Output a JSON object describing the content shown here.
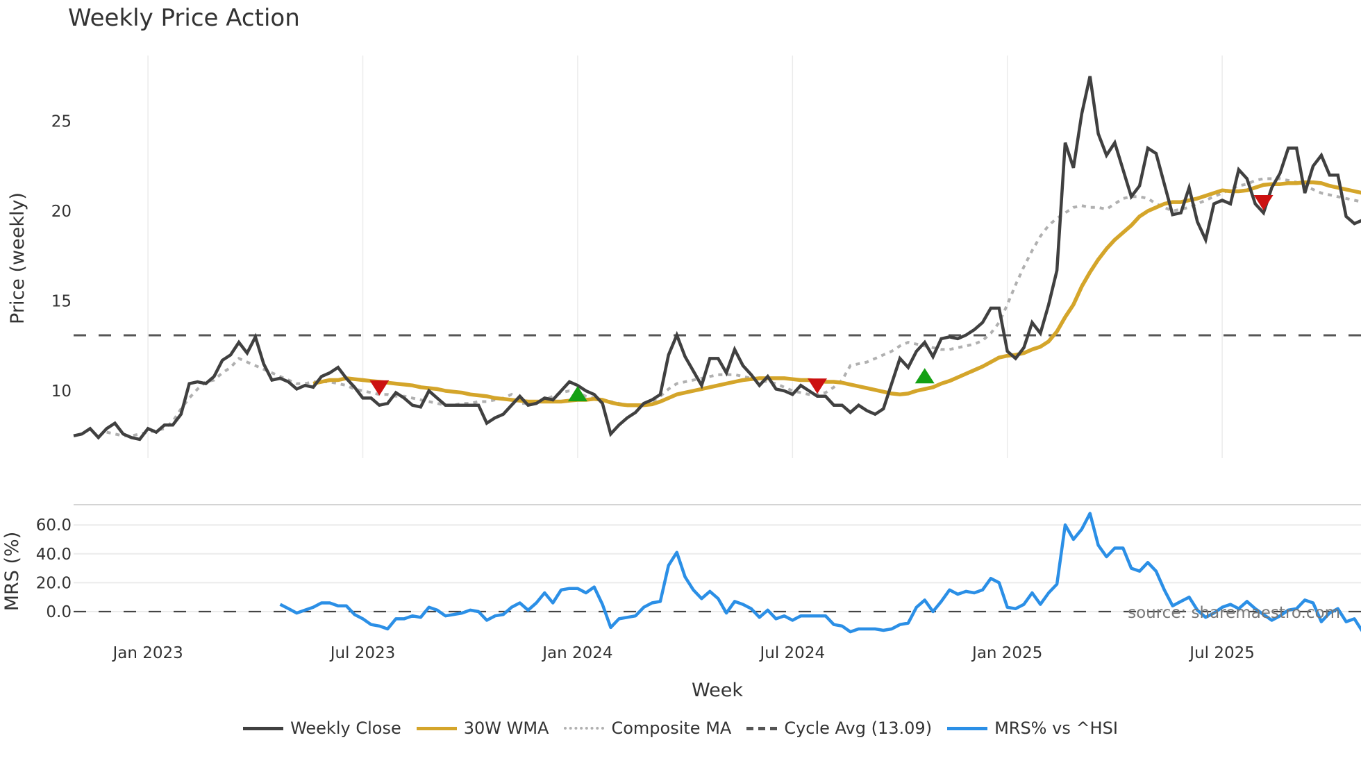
{
  "title": "Weekly Price Action",
  "price_panel": {
    "ylabel": "Price (weekly)",
    "yticks": [
      {
        "value": 25,
        "label": "25"
      },
      {
        "value": 20,
        "label": "20"
      },
      {
        "value": 15,
        "label": "15"
      },
      {
        "value": 10,
        "label": "10"
      }
    ]
  },
  "mrs_panel": {
    "ylabel": "MRS (%)",
    "yticks": [
      {
        "value": 60,
        "label": "60.0"
      },
      {
        "value": 40,
        "label": "40.0"
      },
      {
        "value": 20,
        "label": "20.0"
      },
      {
        "value": 0,
        "label": "0.0"
      }
    ],
    "source_text": "source: sharemaestro.com"
  },
  "xaxis": {
    "label": "Week",
    "ticks": [
      {
        "index": 9,
        "label": "Jan 2023"
      },
      {
        "index": 35,
        "label": "Jul 2023"
      },
      {
        "index": 61,
        "label": "Jan 2024"
      },
      {
        "index": 87,
        "label": "Jul 2024"
      },
      {
        "index": 113,
        "label": "Jan 2025"
      },
      {
        "index": 139,
        "label": "Jul 2025"
      }
    ]
  },
  "legend": [
    {
      "label": "Weekly Close",
      "color": "#404040",
      "style": "solid"
    },
    {
      "label": "30W WMA",
      "color": "#d4a52a",
      "style": "solid"
    },
    {
      "label": "Composite MA",
      "color": "#b0b0b0",
      "style": "dotted"
    },
    {
      "label": "Cycle Avg (13.09)",
      "color": "#555555",
      "style": "dashed"
    },
    {
      "label": "MRS% vs ^HSI",
      "color": "#2b8fe6",
      "style": "solid"
    }
  ],
  "colors": {
    "weekly_close": "#404040",
    "wma": "#d4a52a",
    "composite": "#b0b0b0",
    "cycle_avg": "#555555",
    "mrs": "#2b8fe6",
    "buy_marker": "#14a014",
    "sell_marker": "#cc1111",
    "grid": "#ebebeb"
  },
  "chart_data": [
    {
      "type": "line",
      "title": "Weekly Price Action",
      "xlabel": "Week",
      "ylabel": "Price (weekly)",
      "ylim": [
        6.3,
        28.5
      ],
      "grid": true,
      "legend_position": "bottom",
      "x_ticks": [
        "Jan 2023",
        "Jul 2023",
        "Jan 2024",
        "Jul 2024",
        "Jan 2025",
        "Jul 2025"
      ],
      "series": [
        {
          "name": "Weekly Close",
          "start_index": 0,
          "values": [
            7.5,
            7.6,
            7.9,
            7.4,
            7.9,
            8.2,
            7.6,
            7.4,
            7.3,
            7.9,
            7.7,
            8.1,
            8.1,
            8.7,
            10.4,
            10.5,
            10.4,
            10.8,
            11.7,
            12.0,
            12.7,
            12.1,
            13.0,
            11.5,
            10.6,
            10.7,
            10.5,
            10.1,
            10.3,
            10.2,
            10.8,
            11.0,
            11.3,
            10.7,
            10.2,
            9.6,
            9.6,
            9.2,
            9.3,
            9.9,
            9.6,
            9.2,
            9.1,
            10.0,
            9.6,
            9.2,
            9.2,
            9.2,
            9.2,
            9.2,
            8.2,
            8.5,
            8.7,
            9.2,
            9.7,
            9.2,
            9.3,
            9.6,
            9.5,
            10.0,
            10.5,
            10.3,
            10.0,
            9.8,
            9.3,
            7.6,
            8.1,
            8.5,
            8.8,
            9.3,
            9.5,
            9.8,
            12.0,
            13.1,
            11.9,
            11.1,
            10.3,
            11.8,
            11.8,
            11.0,
            12.3,
            11.4,
            10.9,
            10.3,
            10.8,
            10.1,
            10.0,
            9.8,
            10.3,
            10.0,
            9.7,
            9.7,
            9.2,
            9.2,
            8.8,
            9.2,
            8.9,
            8.7,
            9.0,
            10.4,
            11.8,
            11.3,
            12.2,
            12.7,
            11.9,
            12.9,
            13.0,
            12.9,
            13.1,
            13.4,
            13.8,
            14.6,
            14.6,
            12.2,
            11.8,
            12.4,
            13.8,
            13.2,
            14.8,
            16.7,
            23.8,
            22.4,
            25.4,
            27.5,
            24.3,
            23.1,
            23.8,
            22.3,
            20.8,
            21.4,
            23.5,
            23.2,
            21.5,
            19.8,
            19.9,
            21.3,
            19.4,
            18.4,
            20.4,
            20.6,
            20.4,
            22.3,
            21.8,
            20.4,
            19.9,
            21.3,
            22.1,
            23.5,
            23.5,
            21.0,
            22.5,
            23.1,
            22.0,
            22.0,
            19.7,
            19.3,
            19.5
          ]
        },
        {
          "name": "30W WMA",
          "start_index": 29,
          "values": [
            10.4,
            10.5,
            10.6,
            10.6,
            10.7,
            10.65,
            10.6,
            10.55,
            10.5,
            10.45,
            10.4,
            10.35,
            10.3,
            10.2,
            10.15,
            10.1,
            10.0,
            9.95,
            9.9,
            9.8,
            9.75,
            9.7,
            9.6,
            9.55,
            9.5,
            9.45,
            9.4,
            9.4,
            9.4,
            9.4,
            9.4,
            9.45,
            9.5,
            9.5,
            9.55,
            9.5,
            9.35,
            9.25,
            9.2,
            9.2,
            9.2,
            9.25,
            9.4,
            9.6,
            9.8,
            9.9,
            10.0,
            10.1,
            10.2,
            10.3,
            10.4,
            10.5,
            10.6,
            10.65,
            10.7,
            10.7,
            10.7,
            10.7,
            10.65,
            10.6,
            10.6,
            10.55,
            10.5,
            10.5,
            10.45,
            10.35,
            10.25,
            10.15,
            10.05,
            9.95,
            9.85,
            9.8,
            9.85,
            10.0,
            10.1,
            10.2,
            10.4,
            10.55,
            10.75,
            10.95,
            11.15,
            11.35,
            11.6,
            11.85,
            11.95,
            12.0,
            12.1,
            12.3,
            12.45,
            12.75,
            13.3,
            14.1,
            14.8,
            15.8,
            16.6,
            17.3,
            17.9,
            18.4,
            18.8,
            19.2,
            19.7,
            20.0,
            20.2,
            20.4,
            20.5,
            20.5,
            20.6,
            20.7,
            20.85,
            21.0,
            21.15,
            21.1,
            21.1,
            21.15,
            21.3,
            21.45,
            21.5,
            21.5,
            21.55,
            21.55,
            21.6,
            21.6,
            21.55,
            21.4,
            21.3,
            21.2,
            21.1,
            21.0
          ]
        },
        {
          "name": "Composite MA",
          "start_index": 4,
          "values": [
            7.7,
            7.6,
            7.5,
            7.5,
            7.6,
            7.7,
            7.8,
            7.9,
            8.3,
            9.0,
            9.6,
            10.1,
            10.5,
            10.6,
            11.0,
            11.3,
            11.8,
            11.6,
            11.4,
            11.2,
            11.0,
            10.8,
            10.6,
            10.4,
            10.4,
            10.5,
            10.5,
            10.5,
            10.4,
            10.3,
            10.1,
            10.0,
            9.9,
            9.8,
            9.8,
            9.7,
            9.7,
            9.6,
            9.5,
            9.4,
            9.3,
            9.2,
            9.2,
            9.3,
            9.3,
            9.4,
            9.4,
            9.5,
            9.6,
            9.8,
            9.3,
            9.3,
            9.4,
            9.5,
            9.7,
            9.9,
            10.0,
            9.9,
            9.7,
            9.6,
            9.5,
            9.4,
            9.3,
            9.2,
            9.2,
            9.2,
            9.4,
            9.7,
            10.1,
            10.4,
            10.5,
            10.6,
            10.7,
            10.8,
            10.9,
            10.9,
            10.9,
            10.8,
            10.7,
            10.6,
            10.5,
            10.4,
            10.2,
            10.0,
            9.9,
            9.8,
            9.8,
            9.9,
            10.2,
            10.6,
            11.4,
            11.5,
            11.6,
            11.8,
            12.0,
            12.2,
            12.5,
            12.7,
            12.6,
            12.5,
            12.4,
            12.3,
            12.3,
            12.4,
            12.5,
            12.6,
            12.8,
            13.2,
            13.8,
            14.8,
            15.9,
            16.9,
            17.8,
            18.6,
            19.2,
            19.6,
            19.9,
            20.2,
            20.3,
            20.2,
            20.2,
            20.1,
            20.4,
            20.7,
            20.8,
            20.8,
            20.7,
            20.4,
            20.2,
            20.0,
            20.1,
            20.2,
            20.4,
            20.6,
            20.8,
            21.0,
            21.2,
            21.4,
            21.5,
            21.7,
            21.8,
            21.8,
            21.8,
            21.7,
            21.6,
            21.4,
            21.2,
            21.0,
            20.9,
            20.8,
            20.7,
            20.6,
            20.5
          ]
        },
        {
          "name": "Cycle Avg (13.09)",
          "constant": 13.09
        }
      ],
      "markers": [
        {
          "type": "sell",
          "shape": "triangle-down",
          "index": 37,
          "value": 10.2
        },
        {
          "type": "buy",
          "shape": "triangle-up",
          "index": 61,
          "value": 9.8
        },
        {
          "type": "sell",
          "shape": "triangle-down",
          "index": 90,
          "value": 10.3
        },
        {
          "type": "buy",
          "shape": "triangle-up",
          "index": 103,
          "value": 10.8
        },
        {
          "type": "sell",
          "shape": "triangle-down",
          "index": 144,
          "value": 20.5
        }
      ]
    },
    {
      "type": "line",
      "title": "",
      "xlabel": "Week",
      "ylabel": "MRS (%)",
      "ylim": [
        -20,
        75
      ],
      "grid": true,
      "annotation": "source: sharemaestro.com",
      "series": [
        {
          "name": "MRS% vs ^HSI",
          "start_index": 25,
          "values": [
            5,
            2,
            -1,
            1,
            3,
            6,
            6,
            4,
            4,
            -2,
            -5,
            -9,
            -10,
            -12,
            -5,
            -5,
            -3,
            -4,
            3,
            1,
            -3,
            -2,
            -1,
            1,
            0,
            -6,
            -3,
            -2,
            3,
            6,
            1,
            6,
            13,
            6,
            15,
            16,
            16,
            13,
            17,
            5,
            -11,
            -5,
            -4,
            -3,
            3,
            6,
            7,
            32,
            41,
            24,
            15,
            9,
            14,
            9,
            -1,
            7,
            5,
            2,
            -4,
            1,
            -5,
            -3,
            -6,
            -3,
            -3,
            -3,
            -3,
            -9,
            -10,
            -14,
            -12,
            -12,
            -12,
            -13,
            -12,
            -9,
            -8,
            3,
            8,
            0,
            7,
            15,
            12,
            14,
            13,
            15,
            23,
            20,
            3,
            2,
            5,
            13,
            5,
            13,
            19,
            60,
            50,
            57,
            68,
            46,
            38,
            44,
            44,
            30,
            28,
            34,
            28,
            15,
            4,
            7,
            10,
            1,
            -4,
            -1,
            3,
            5,
            2,
            7,
            2,
            -2,
            -6,
            -3,
            1,
            2,
            8,
            6,
            -7,
            -1,
            2,
            -7,
            -5,
            -14,
            -14
          ]
        },
        {
          "name": "zero line",
          "constant": 0
        }
      ]
    }
  ]
}
